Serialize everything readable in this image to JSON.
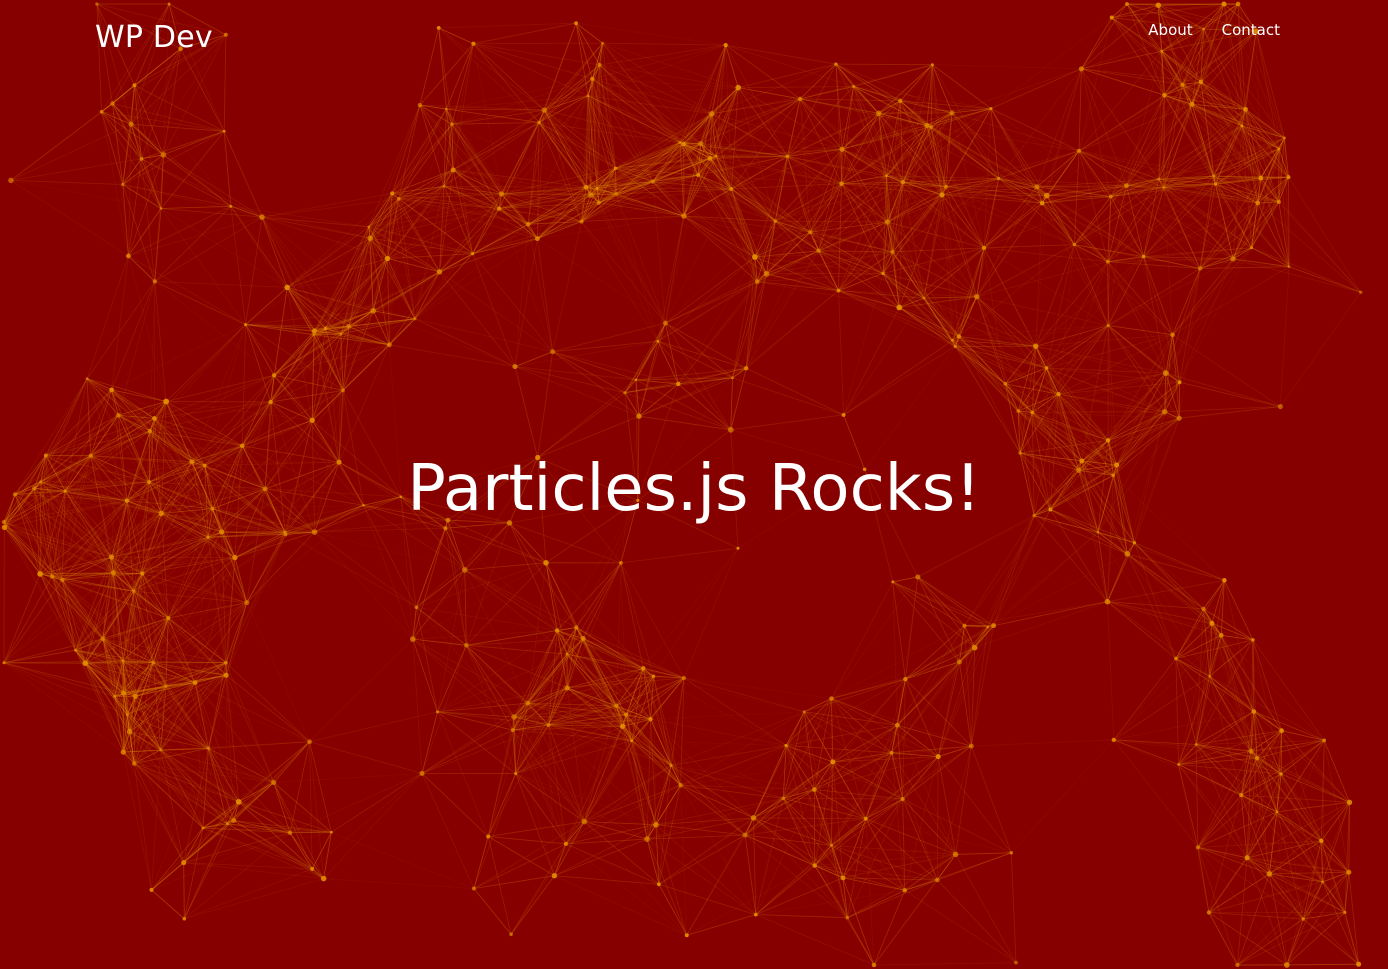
{
  "site": {
    "brand": "WP Dev"
  },
  "nav": {
    "items": [
      {
        "label": "About"
      },
      {
        "label": "Contact"
      }
    ]
  },
  "hero": {
    "title": "Particles.js Rocks!"
  },
  "theme": {
    "background": "#870000",
    "particle_color": "#e08a00",
    "link_color": "#d98200",
    "text_color": "#ffffff"
  }
}
